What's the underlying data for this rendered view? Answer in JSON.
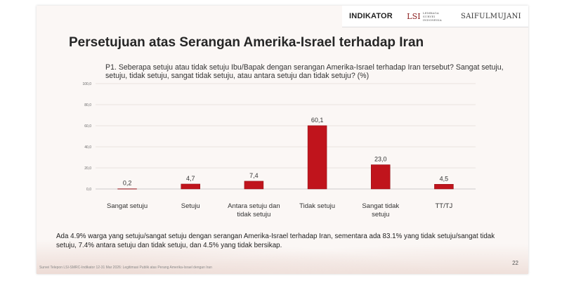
{
  "logos": {
    "indikator": "INDIKATOR",
    "lsi_mark": "LSI",
    "lsi_text": "LEMBAGA SURVEI INDONESIA",
    "saiful": "SAIFULMUJANI"
  },
  "title": "Persetujuan atas Serangan Amerika-Israel terhadap Iran",
  "question": "P1. Seberapa setuju atau tidak setuju Ibu/Bapak dengan serangan Amerika-Israel terhadap Iran tersebut? Sangat setuju, setuju, tidak setuju, sangat tidak setuju, atau antara setuju dan tidak setuju? (%)",
  "summary": "Ada 4.9% warga yang setuju/sangat setuju dengan serangan Amerika-Israel terhadap Iran, sementara ada 83.1% yang tidak setuju/sangat tidak setuju, 7.4% antara setuju dan tidak setuju, dan 4.5% yang tidak bersikap.",
  "footer": "Survei Telepon LSI-SMRC-Indikator 12-31 Mar 2026: Legitimasi Publik atas Perang Amerika-Israel dengan Iran",
  "page_number": "22",
  "colors": {
    "bar": "#c0141c",
    "bar_edge": "#8e0c12"
  },
  "chart_data": {
    "type": "bar",
    "categories": [
      [
        "Sangat setuju"
      ],
      [
        "Setuju"
      ],
      [
        "Antara setuju dan",
        "tidak setuju"
      ],
      [
        "Tidak setuju"
      ],
      [
        "Sangat tidak",
        "setuju"
      ],
      [
        "TT/TJ"
      ]
    ],
    "values": [
      0.2,
      4.7,
      7.4,
      60.1,
      23.0,
      4.5
    ],
    "value_labels": [
      "0,2",
      "4,7",
      "7,4",
      "60,1",
      "23,0",
      "4,5"
    ],
    "yticks": [
      0,
      20,
      40,
      60,
      80,
      100
    ],
    "ytick_labels": [
      "0,0",
      "20,0",
      "40,0",
      "60,0",
      "80,0",
      "100,0"
    ],
    "ylim": [
      0,
      100
    ],
    "grid": true,
    "legend": "none"
  }
}
